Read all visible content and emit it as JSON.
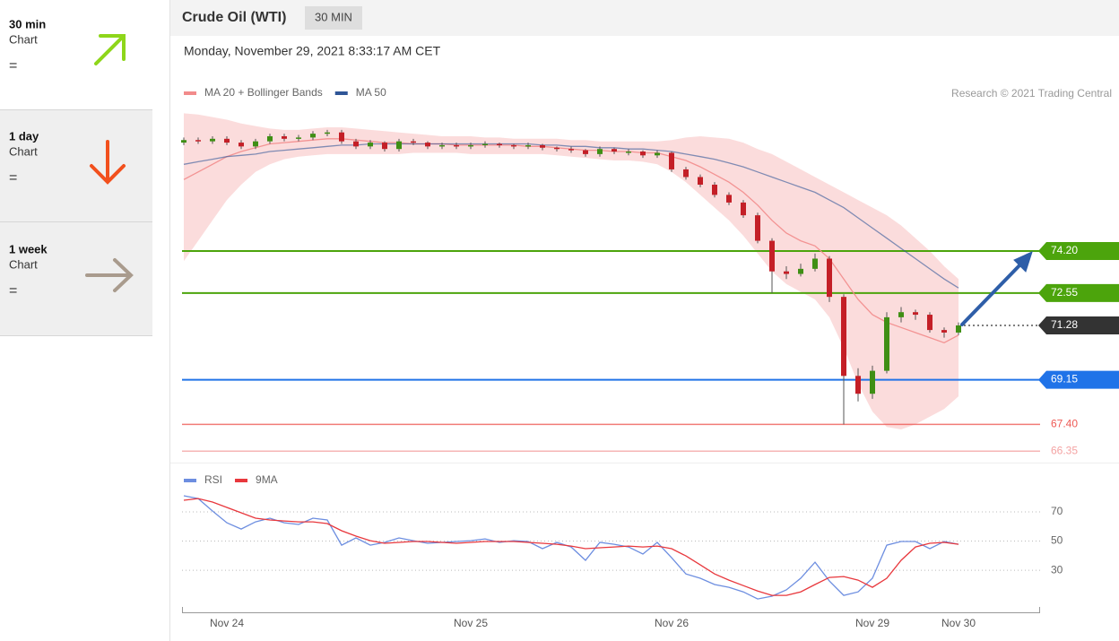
{
  "sidebar": [
    {
      "period": "30 min",
      "label": "Chart",
      "signal": "="
    },
    {
      "period": "1 day",
      "label": "Chart",
      "signal": "="
    },
    {
      "period": "1 week",
      "label": "Chart",
      "signal": "="
    }
  ],
  "header": {
    "title": "Crude Oil (WTI)",
    "interval": "30 MIN",
    "timestamp": "Monday, November 29, 2021 8:33:17 AM CET",
    "credit": "Research © 2021 Trading Central"
  },
  "chart_data": [
    {
      "type": "candlestick",
      "up_color": "#3f8f14",
      "down_color": "#c41f27",
      "ylim": [
        65.9,
        80.0
      ],
      "open": [
        78.45,
        78.55,
        78.5,
        78.6,
        78.45,
        78.3,
        78.5,
        78.7,
        78.6,
        78.65,
        78.8,
        78.85,
        78.5,
        78.3,
        78.45,
        78.2,
        78.5,
        78.45,
        78.3,
        78.35,
        78.3,
        78.35,
        78.4,
        78.35,
        78.3,
        78.35,
        78.25,
        78.2,
        78.15,
        78.0,
        78.2,
        78.1,
        78.1,
        77.95,
        78.05,
        77.4,
        77.1,
        76.8,
        76.4,
        76.1,
        75.6,
        74.6,
        73.4,
        73.3,
        73.5,
        73.9,
        72.4,
        69.3,
        68.6,
        69.5,
        71.6,
        71.8,
        71.7,
        71.1,
        71.0,
        null,
        null,
        null,
        null,
        null
      ],
      "high": [
        78.65,
        78.65,
        78.7,
        78.7,
        78.55,
        78.6,
        78.8,
        78.8,
        78.75,
        78.9,
        78.95,
        78.95,
        78.6,
        78.55,
        78.5,
        78.6,
        78.6,
        78.5,
        78.45,
        78.45,
        78.45,
        78.5,
        78.45,
        78.4,
        78.45,
        78.4,
        78.3,
        78.3,
        78.2,
        78.3,
        78.25,
        78.2,
        78.15,
        78.15,
        78.1,
        77.5,
        77.2,
        76.9,
        76.5,
        76.2,
        75.7,
        74.7,
        73.6,
        73.7,
        74.1,
        74.0,
        72.5,
        69.6,
        69.7,
        71.8,
        72.0,
        71.9,
        71.8,
        71.2,
        71.4,
        null,
        null,
        null,
        null,
        null
      ],
      "low": [
        78.35,
        78.4,
        78.4,
        78.35,
        78.2,
        78.2,
        78.4,
        78.5,
        78.5,
        78.55,
        78.7,
        78.4,
        78.2,
        78.2,
        78.1,
        78.1,
        78.35,
        78.2,
        78.2,
        78.2,
        78.2,
        78.25,
        78.25,
        78.2,
        78.2,
        78.15,
        78.1,
        78.05,
        77.9,
        77.9,
        78.0,
        77.95,
        77.85,
        77.85,
        77.3,
        77.0,
        76.7,
        76.3,
        76.0,
        75.5,
        74.5,
        72.55,
        73.1,
        73.2,
        73.4,
        72.2,
        67.4,
        68.3,
        68.4,
        69.4,
        71.4,
        71.5,
        71.0,
        70.8,
        70.9,
        null,
        null,
        null,
        null,
        null
      ],
      "close": [
        78.55,
        78.5,
        78.6,
        78.45,
        78.3,
        78.5,
        78.7,
        78.6,
        78.65,
        78.8,
        78.85,
        78.5,
        78.3,
        78.45,
        78.2,
        78.5,
        78.45,
        78.3,
        78.35,
        78.3,
        78.35,
        78.4,
        78.35,
        78.3,
        78.35,
        78.25,
        78.2,
        78.15,
        78.0,
        78.2,
        78.1,
        78.1,
        77.95,
        78.05,
        77.4,
        77.1,
        76.8,
        76.4,
        76.1,
        75.6,
        74.6,
        73.4,
        73.3,
        73.5,
        73.9,
        72.4,
        69.3,
        68.6,
        69.5,
        71.6,
        71.8,
        71.7,
        71.1,
        71.0,
        71.28,
        null,
        null,
        null,
        null,
        null
      ],
      "series": [
        {
          "name": "MA 20 + Bollinger Bands",
          "color": "#f28b8b",
          "values": [
            77.0,
            77.3,
            77.6,
            77.9,
            78.1,
            78.25,
            78.4,
            78.45,
            78.5,
            78.55,
            78.6,
            78.6,
            78.55,
            78.5,
            78.45,
            78.45,
            78.4,
            78.4,
            78.4,
            78.35,
            78.35,
            78.35,
            78.35,
            78.35,
            78.3,
            78.3,
            78.25,
            78.2,
            78.15,
            78.15,
            78.1,
            78.1,
            78.05,
            78.05,
            77.9,
            77.75,
            77.5,
            77.2,
            76.9,
            76.5,
            76.0,
            75.4,
            74.9,
            74.6,
            74.4,
            73.9,
            73.1,
            72.3,
            71.7,
            71.4,
            71.2,
            71.0,
            70.8,
            70.6,
            70.9,
            null,
            null,
            null,
            null,
            null
          ],
          "upper": [
            79.6,
            79.55,
            79.45,
            79.35,
            79.2,
            79.1,
            79.0,
            78.95,
            78.95,
            79.0,
            79.05,
            79.05,
            79.0,
            78.95,
            78.9,
            78.85,
            78.8,
            78.75,
            78.7,
            78.7,
            78.7,
            78.65,
            78.65,
            78.6,
            78.6,
            78.6,
            78.6,
            78.55,
            78.55,
            78.5,
            78.5,
            78.5,
            78.5,
            78.5,
            78.55,
            78.65,
            78.7,
            78.65,
            78.6,
            78.45,
            78.2,
            78.0,
            77.7,
            77.4,
            77.1,
            76.8,
            76.5,
            76.2,
            75.9,
            75.6,
            75.2,
            74.7,
            74.2,
            73.6,
            73.1,
            null,
            null,
            null,
            null,
            null
          ],
          "lower": [
            73.8,
            74.6,
            75.4,
            76.2,
            76.8,
            77.3,
            77.6,
            77.8,
            77.9,
            77.95,
            78.0,
            78.0,
            78.0,
            78.0,
            78.0,
            78.0,
            78.05,
            78.05,
            78.05,
            78.05,
            78.0,
            78.0,
            78.0,
            78.0,
            78.0,
            78.0,
            77.95,
            77.9,
            77.85,
            77.8,
            77.75,
            77.75,
            77.7,
            77.6,
            77.3,
            76.9,
            76.4,
            75.9,
            75.4,
            74.8,
            74.1,
            73.4,
            72.9,
            72.6,
            72.3,
            71.6,
            70.4,
            69.0,
            67.9,
            67.3,
            67.2,
            67.4,
            67.7,
            68.0,
            68.5,
            null,
            null,
            null,
            null,
            null
          ]
        },
        {
          "name": "MA 50",
          "color": "#2f5597",
          "values": [
            77.6,
            77.7,
            77.8,
            77.9,
            77.95,
            78.0,
            78.1,
            78.15,
            78.2,
            78.25,
            78.3,
            78.35,
            78.35,
            78.4,
            78.4,
            78.4,
            78.4,
            78.4,
            78.4,
            78.4,
            78.4,
            78.4,
            78.4,
            78.4,
            78.4,
            78.35,
            78.35,
            78.3,
            78.3,
            78.25,
            78.25,
            78.2,
            78.2,
            78.15,
            78.1,
            78.0,
            77.9,
            77.8,
            77.65,
            77.5,
            77.3,
            77.1,
            76.9,
            76.7,
            76.5,
            76.2,
            75.9,
            75.5,
            75.1,
            74.7,
            74.3,
            73.9,
            73.5,
            73.1,
            72.75,
            null,
            null,
            null,
            null,
            null
          ]
        }
      ],
      "levels": [
        {
          "value": 74.2,
          "label": "74.20",
          "color": "#4ca40c",
          "tag": true
        },
        {
          "value": 72.55,
          "label": "72.55",
          "color": "#4ca40c",
          "tag": true
        },
        {
          "value": 71.28,
          "label": "71.28",
          "color": "#333333",
          "tag": true,
          "dashed": true
        },
        {
          "value": 69.15,
          "label": "69.15",
          "color": "#2073e8",
          "tag": true
        },
        {
          "value": 67.4,
          "label": "67.40",
          "color": "#ee5a55",
          "tag": false
        },
        {
          "value": 66.35,
          "label": "66.35",
          "color": "#f4a3a3",
          "tag": false
        }
      ]
    },
    {
      "type": "line",
      "categories": [
        null,
        null,
        null,
        "Nov 24",
        null,
        null,
        null,
        null,
        null,
        null,
        null,
        null,
        null,
        null,
        null,
        null,
        null,
        null,
        null,
        null,
        "Nov 25",
        null,
        null,
        null,
        null,
        null,
        null,
        null,
        null,
        null,
        null,
        null,
        null,
        null,
        "Nov 26",
        null,
        null,
        null,
        null,
        null,
        null,
        null,
        null,
        null,
        null,
        null,
        null,
        null,
        "Nov 29",
        null,
        null,
        null,
        null,
        null,
        "Nov 30",
        null,
        null,
        null,
        null,
        null
      ],
      "ylim": [
        3,
        86
      ],
      "yticks": [
        30,
        50,
        70
      ],
      "grid": true,
      "series": [
        {
          "name": "RSI",
          "color": "#6d8ee0",
          "values": [
            81.1,
            79.2,
            70.6,
            62.6,
            58.3,
            63.2,
            65.7,
            62.6,
            61.4,
            65.7,
            64.5,
            47.2,
            52.2,
            47.2,
            49.1,
            52.2,
            50.3,
            48.5,
            49.1,
            49.7,
            50.3,
            51.5,
            49.1,
            50.3,
            49.7,
            44.8,
            49.1,
            46.0,
            36.8,
            49.1,
            47.8,
            46.0,
            41.1,
            49.1,
            38.6,
            27.5,
            24.5,
            20.2,
            18.3,
            15.2,
            10.3,
            12.2,
            16.5,
            24.5,
            35.5,
            22.6,
            12.8,
            15.2,
            24.5,
            47.2,
            49.7,
            49.7,
            44.8,
            49.7,
            47.8,
            null,
            null,
            null,
            null,
            null
          ]
        },
        {
          "name": "9MA",
          "color": "#e8383d",
          "values": [
            78.0,
            79.2,
            76.8,
            73.1,
            69.4,
            65.7,
            64.5,
            63.8,
            63.2,
            63.2,
            62.0,
            57.1,
            53.4,
            50.3,
            48.5,
            49.1,
            49.7,
            49.7,
            49.1,
            48.5,
            49.1,
            49.7,
            49.7,
            49.7,
            49.1,
            48.5,
            47.8,
            46.6,
            44.8,
            45.4,
            46.0,
            46.6,
            46.0,
            46.6,
            44.8,
            39.8,
            33.7,
            27.5,
            23.2,
            19.5,
            15.8,
            12.8,
            12.8,
            15.2,
            20.2,
            25.1,
            25.7,
            23.2,
            18.3,
            24.5,
            36.8,
            46.0,
            48.5,
            49.1,
            47.8,
            null,
            null,
            null,
            null,
            null
          ]
        }
      ]
    }
  ]
}
